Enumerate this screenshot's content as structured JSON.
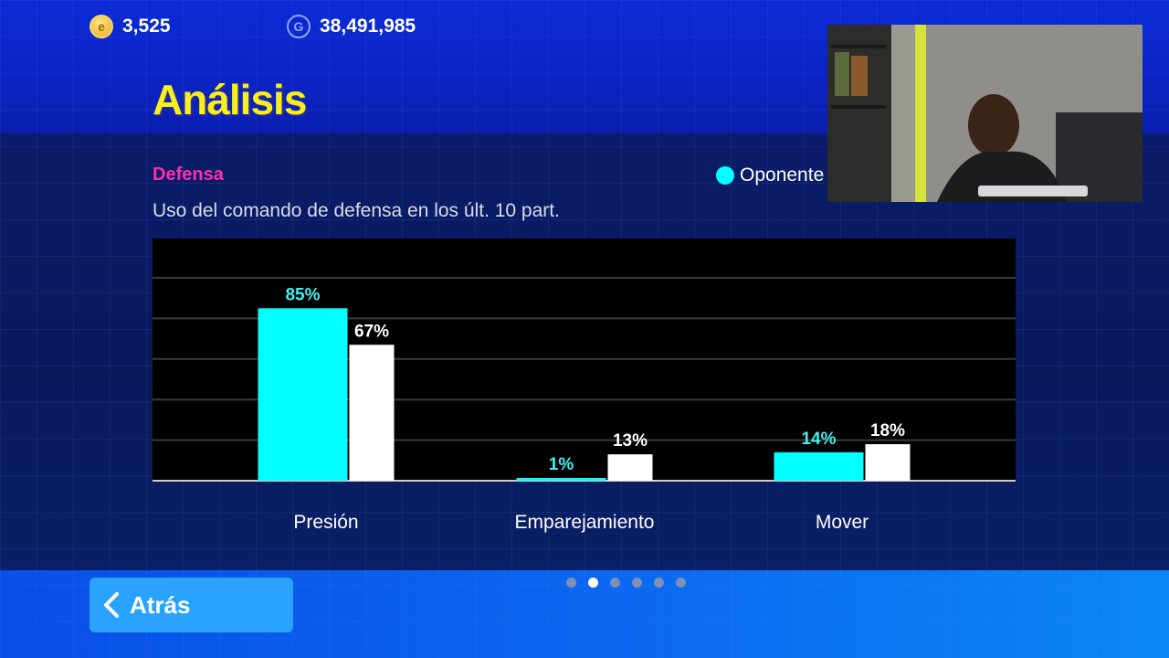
{
  "hud": {
    "coins": "3,525",
    "gp": "38,491,985",
    "coin_icon": "e",
    "gp_icon": "G"
  },
  "page": {
    "title": "Análisis",
    "section": "Defensa",
    "subtitle": "Uso del comando de defensa en los últ. 10 part."
  },
  "legend": {
    "label": "Oponente",
    "color": "#00ffff"
  },
  "chart_data": {
    "type": "bar",
    "categories": [
      "Presión",
      "Emparejamiento",
      "Mover"
    ],
    "series": [
      {
        "name": "Oponente",
        "color": "#00ffff",
        "values": [
          85,
          1,
          14
        ],
        "labels": [
          "85%",
          "1%",
          "14%"
        ]
      },
      {
        "color": "#ffffff",
        "values": [
          67,
          13,
          18
        ],
        "labels": [
          "67%",
          "13%",
          "18%"
        ]
      }
    ],
    "ylim": [
      0,
      100
    ],
    "grid": true
  },
  "footer": {
    "back_label": "Atrás",
    "page_count": 6,
    "active_page": 2
  },
  "colors": {
    "title": "#f7ee1b",
    "section": "#ff2fa8",
    "chart_bg": "#000000"
  }
}
